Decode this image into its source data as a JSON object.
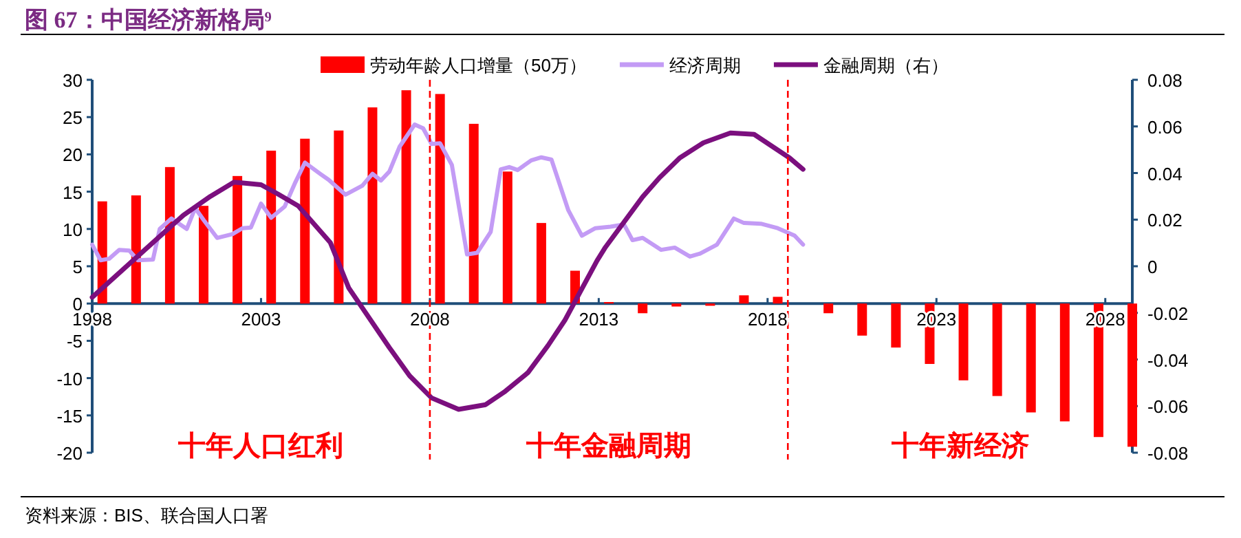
{
  "chart_data": {
    "type": "bar",
    "title": "图 67：中国经济新格局⁹",
    "xlim": [
      1998,
      2028.8
    ],
    "xticks": [
      1998,
      2003,
      2008,
      2013,
      2018,
      2023,
      2028
    ],
    "ylim": [
      -20,
      30
    ],
    "yticks": [
      -20,
      -15,
      -10,
      -5,
      0,
      5,
      10,
      15,
      20,
      25,
      30
    ],
    "y2lim": [
      -0.08,
      0.08
    ],
    "y2ticks": [
      -0.08,
      -0.06,
      -0.04,
      -0.02,
      0,
      0.02,
      0.04,
      0.06,
      0.08
    ],
    "legend": "top",
    "grid": false,
    "series": [
      {
        "name": "劳动年龄人口增量（50万）",
        "color": "#ff0000",
        "x": [
          1998.3,
          1999.3,
          2000.3,
          2001.3,
          2002.3,
          2003.3,
          2004.3,
          2005.3,
          2006.3,
          2007.3,
          2008.3,
          2009.3,
          2010.3,
          2011.3,
          2012.3,
          2013.3,
          2014.3,
          2015.3,
          2016.3,
          2017.3,
          2018.3,
          2019.8,
          2020.8,
          2021.8,
          2022.8,
          2023.8,
          2024.8,
          2025.8,
          2026.8,
          2027.8,
          2028.8
        ],
        "values": [
          13.7,
          14.5,
          18.3,
          13.1,
          17.1,
          20.5,
          22.1,
          23.2,
          26.3,
          28.6,
          28.1,
          24.1,
          17.7,
          10.8,
          4.4,
          0.2,
          -1.3,
          -0.4,
          -0.3,
          1.1,
          0.9,
          -1.3,
          -4.3,
          -5.9,
          -8.1,
          -10.3,
          -12.4,
          -14.6,
          -15.8,
          -17.9,
          -19.2
        ]
      },
      {
        "name": "经济周期",
        "type": "line",
        "color": "#c39bf5",
        "x": [
          1998.0,
          1998.25,
          1998.5,
          1998.8,
          1999.1,
          1999.35,
          1999.8,
          2000.0,
          2000.35,
          2000.8,
          2001.05,
          2001.3,
          2001.7,
          2002.15,
          2002.45,
          2002.7,
          2003.0,
          2003.3,
          2003.7,
          2004.0,
          2004.3,
          2004.75,
          2005.0,
          2005.5,
          2006.0,
          2006.3,
          2006.55,
          2006.8,
          2007.1,
          2007.55,
          2007.8,
          2008.05,
          2008.3,
          2008.65,
          2009.1,
          2009.4,
          2009.8,
          2010.1,
          2010.35,
          2010.6,
          2011.0,
          2011.3,
          2011.6,
          2012.1,
          2012.5,
          2012.9,
          2013.35,
          2013.75,
          2014.0,
          2014.3,
          2014.85,
          2015.25,
          2015.7,
          2016.0,
          2016.5,
          2017.0,
          2017.3,
          2017.8,
          2018.3,
          2018.8,
          2019.05
        ],
        "values": [
          7.9,
          5.8,
          6.0,
          7.2,
          7.1,
          5.8,
          5.9,
          10.0,
          11.4,
          10.0,
          12.8,
          11.2,
          8.8,
          9.3,
          10.1,
          10.2,
          13.4,
          11.5,
          13.0,
          16.1,
          18.9,
          17.4,
          16.6,
          14.6,
          15.8,
          17.4,
          16.5,
          17.7,
          21.0,
          24.0,
          23.5,
          21.4,
          21.5,
          18.6,
          6.6,
          6.8,
          9.6,
          18.0,
          18.3,
          17.9,
          19.2,
          19.6,
          19.3,
          12.5,
          9.1,
          10.1,
          10.3,
          10.6,
          8.5,
          8.8,
          7.2,
          7.5,
          6.3,
          6.7,
          7.9,
          11.4,
          10.8,
          10.7,
          10.1,
          9.1,
          7.9
        ]
      },
      {
        "name": "金融周期（右）",
        "type": "line",
        "color": "#7b0f7e",
        "axis": "y2",
        "x": [
          1998.0,
          1999.35,
          2000.7,
          2001.5,
          2002.2,
          2003.0,
          2003.5,
          2004.1,
          2005.05,
          2005.6,
          2006.8,
          2007.4,
          2008.05,
          2008.85,
          2009.65,
          2010.2,
          2010.9,
          2011.5,
          2012.0,
          2012.95,
          2013.2,
          2014.3,
          2014.8,
          2015.4,
          2016.1,
          2016.9,
          2017.6,
          2018.65,
          2019.05
        ],
        "values": [
          -0.0133,
          0.0043,
          0.0219,
          0.03,
          0.0361,
          0.035,
          0.031,
          0.0259,
          0.0102,
          -0.0094,
          -0.0349,
          -0.047,
          -0.0565,
          -0.0614,
          -0.0594,
          -0.054,
          -0.0457,
          -0.034,
          -0.0231,
          0.0024,
          0.0082,
          0.0298,
          0.038,
          0.0465,
          0.053,
          0.0572,
          0.0566,
          0.0465,
          0.0416
        ]
      }
    ],
    "ref_lines": [
      {
        "axis": "x",
        "value": 2008,
        "color": "#ff0000",
        "line_style": "dashed"
      },
      {
        "axis": "x",
        "value": 2018.6,
        "color": "#ff0000",
        "line_style": "dashed"
      }
    ],
    "annotations": [
      "十年人口红利",
      "十年金融周期",
      "十年新经济",
      "资料来源：BIS、联合国人口署"
    ]
  }
}
